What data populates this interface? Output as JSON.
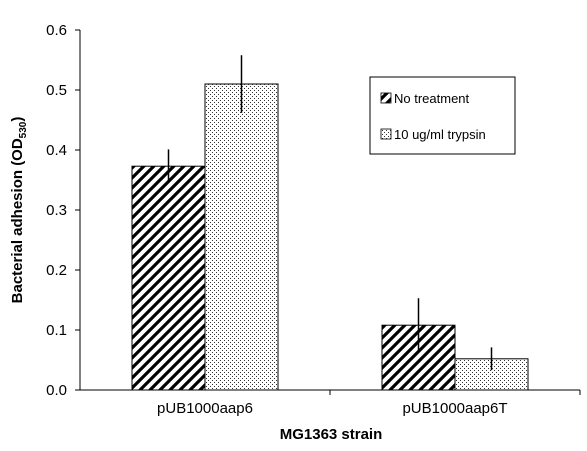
{
  "chart_data": {
    "type": "bar",
    "title": "",
    "xlabel": "MG1363 strain",
    "ylabel_main": "Bacterial adhesion (OD",
    "ylabel_sub": "530",
    "ylabel_close": ")",
    "ylim": [
      0,
      0.6
    ],
    "yticks": [
      "0.0",
      "0.1",
      "0.2",
      "0.3",
      "0.4",
      "0.5",
      "0.6"
    ],
    "categories": [
      "pUB1000aap6",
      "pUB1000aap6T"
    ],
    "series": [
      {
        "name": "No treatment",
        "pattern": "diagonal-stripes",
        "values": [
          0.373,
          0.108
        ],
        "error": [
          0.028,
          0.045
        ]
      },
      {
        "name": "10 ug/ml trypsin",
        "pattern": "dotted",
        "values": [
          0.51,
          0.052
        ],
        "error": [
          0.048,
          0.019
        ]
      }
    ],
    "legend_position": "top-right",
    "grid": false,
    "colors": {
      "axis": "#000000",
      "bar_fill": "#ffffff",
      "pattern_ink": "#000000"
    }
  }
}
